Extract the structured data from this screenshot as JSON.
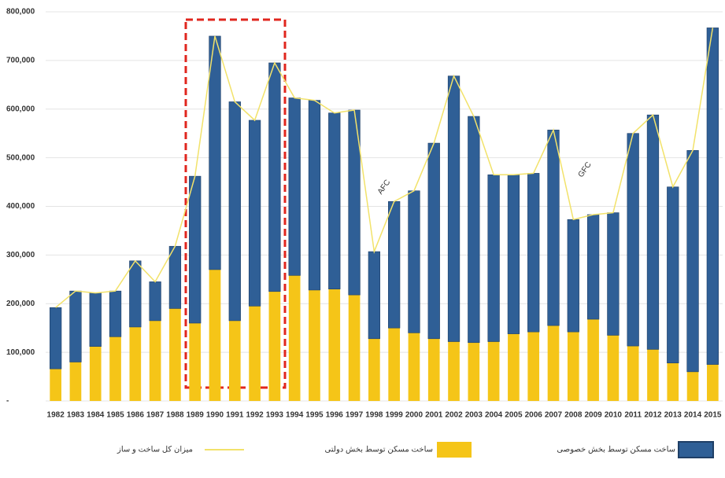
{
  "chart_data": {
    "type": "stacked-bar-line",
    "categories": [
      "1982",
      "1983",
      "1984",
      "1985",
      "1986",
      "1987",
      "1988",
      "1989",
      "1990",
      "1991",
      "1992",
      "1993",
      "1994",
      "1995",
      "1996",
      "1997",
      "1998",
      "1999",
      "2000",
      "2001",
      "2002",
      "2003",
      "2004",
      "2005",
      "2006",
      "2007",
      "2008",
      "2009",
      "2010",
      "2011",
      "2012",
      "2013",
      "2014",
      "2015"
    ],
    "series": [
      {
        "name": "ساخت مسکن توسط بخش خصوصی",
        "color": "#2f5f96",
        "kind": "bar",
        "values": [
          126000,
          146000,
          110000,
          94000,
          136000,
          80000,
          128000,
          302000,
          480000,
          450000,
          382000,
          470000,
          365000,
          390000,
          362000,
          380000,
          179000,
          260000,
          292000,
          402000,
          546000,
          465000,
          343000,
          327000,
          326000,
          402000,
          231000,
          215000,
          252000,
          437000,
          482000,
          362000,
          455000,
          692000
        ]
      },
      {
        "name": "ساخت مسکن توسط بخش دولتی",
        "color": "#f5c518",
        "kind": "bar",
        "values": [
          66000,
          80000,
          112000,
          132000,
          152000,
          165000,
          190000,
          160000,
          270000,
          165000,
          195000,
          225000,
          258000,
          228000,
          230000,
          218000,
          128000,
          150000,
          140000,
          128000,
          122000,
          120000,
          122000,
          138000,
          142000,
          155000,
          142000,
          168000,
          135000,
          113000,
          106000,
          78000,
          60000,
          75000
        ]
      },
      {
        "name": "میزان کل ساخت و ساز",
        "color": "#f2e26a",
        "kind": "line",
        "values": [
          192000,
          226000,
          222000,
          226000,
          288000,
          245000,
          318000,
          462000,
          750000,
          615000,
          577000,
          695000,
          623000,
          618000,
          592000,
          598000,
          307000,
          410000,
          432000,
          530000,
          668000,
          585000,
          465000,
          465000,
          468000,
          557000,
          373000,
          383000,
          387000,
          550000,
          588000,
          440000,
          515000,
          767000
        ]
      }
    ],
    "annotations": [
      "AFC",
      "GFC"
    ],
    "ylim": [
      0,
      800000
    ],
    "yticks": [
      {
        "value": 0,
        "label": "-"
      },
      {
        "value": 100000,
        "label": "100,000"
      },
      {
        "value": 200000,
        "label": "200,000"
      },
      {
        "value": 300000,
        "label": "300,000"
      },
      {
        "value": 400000,
        "label": "400,000"
      },
      {
        "value": 500000,
        "label": "500,000"
      },
      {
        "value": 600000,
        "label": "600,000"
      },
      {
        "value": 700000,
        "label": "700,000"
      },
      {
        "value": 800000,
        "label": "800,000"
      }
    ],
    "grid": true
  }
}
